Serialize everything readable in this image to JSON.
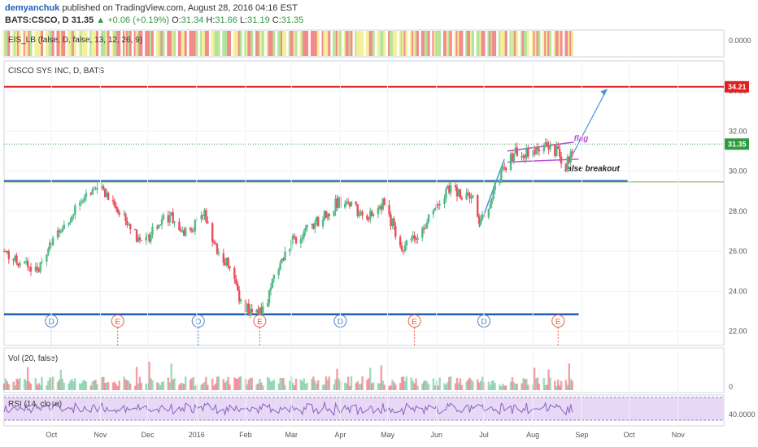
{
  "header": {
    "user": "demyanchuk",
    "published": "published on TradingView.com, August 28, 2016 04:16 EST",
    "symbol": "BATS:CSCO, D",
    "last": "31.35",
    "change": "+0.06 (+0.19%)",
    "open_label": "O:",
    "open": "31.34",
    "high_label": "H:",
    "high": "31.66",
    "low_label": "L:",
    "low": "31.19",
    "close_label": "C:",
    "close": "31.35"
  },
  "colors": {
    "up": "#53b987",
    "down": "#eb4d5c",
    "resistance": "#e02020",
    "support": "#1f5fb8",
    "channel": "#b94fd6",
    "arrow": "#4a90d9",
    "rsi_fill": "#e7d9f5"
  },
  "chart_data": {
    "type": "candlestick",
    "title": "CISCO SYS INC, D, BATS",
    "indicator_panel": "EIS_LB (false, D, false, 13, 12, 26, 9)",
    "indicator_axis_label": "0.0000",
    "volume_panel": "Vol (20, false)",
    "volume_axis_label": "0",
    "rsi_panel": "RSI (14, close)",
    "rsi_axis_label": "40.0000",
    "y_ticks": [
      "34.00",
      "32.00",
      "30.00",
      "28.00",
      "26.00",
      "24.00",
      "22.00"
    ],
    "ylim": [
      21.3,
      35.5
    ],
    "current_price": "31.35",
    "resistance_price": "34.21",
    "x_ticks": [
      "Oct",
      "Nov",
      "Dec",
      "2016",
      "Feb",
      "Mar",
      "Apr",
      "May",
      "Jun",
      "Jul",
      "Aug",
      "Sep",
      "Oct",
      "Nov"
    ],
    "x_tick_dates": [
      "2015-10-01",
      "2015-11-01",
      "2015-12-01",
      "2016-01-01",
      "2016-02-01",
      "2016-03-01",
      "2016-04-01",
      "2016-05-01",
      "2016-06-01",
      "2016-07-01",
      "2016-08-01",
      "2016-09-01",
      "2016-10-01",
      "2016-11-01"
    ],
    "xlim": [
      "2015-09-01",
      "2016-11-30"
    ],
    "price_path": [
      [
        "2015-09-01",
        26.0
      ],
      [
        "2015-09-12",
        25.4
      ],
      [
        "2015-09-22",
        25.1
      ],
      [
        "2015-09-30",
        26.2
      ],
      [
        "2015-10-08",
        27.3
      ],
      [
        "2015-10-18",
        28.2
      ],
      [
        "2015-10-28",
        29.1
      ],
      [
        "2015-11-04",
        29.0
      ],
      [
        "2015-11-14",
        28.0
      ],
      [
        "2015-11-22",
        27.0
      ],
      [
        "2015-11-28",
        26.3
      ],
      [
        "2015-12-08",
        27.5
      ],
      [
        "2015-12-18",
        27.7
      ],
      [
        "2015-12-24",
        26.9
      ],
      [
        "2015-12-31",
        27.3
      ],
      [
        "2016-01-06",
        27.8
      ],
      [
        "2016-01-10",
        26.6
      ],
      [
        "2016-01-18",
        25.7
      ],
      [
        "2016-01-24",
        24.8
      ],
      [
        "2016-01-28",
        23.5
      ],
      [
        "2016-02-04",
        23.0
      ],
      [
        "2016-02-11",
        22.9
      ],
      [
        "2016-02-14",
        23.4
      ],
      [
        "2016-02-20",
        25.0
      ],
      [
        "2016-02-28",
        26.3
      ],
      [
        "2016-03-10",
        27.0
      ],
      [
        "2016-03-20",
        27.6
      ],
      [
        "2016-03-31",
        28.5
      ],
      [
        "2016-04-08",
        28.3
      ],
      [
        "2016-04-18",
        27.6
      ],
      [
        "2016-04-28",
        28.4
      ],
      [
        "2016-05-05",
        27.2
      ],
      [
        "2016-05-10",
        26.2
      ],
      [
        "2016-05-20",
        26.7
      ],
      [
        "2016-05-31",
        28.1
      ],
      [
        "2016-06-08",
        29.1
      ],
      [
        "2016-06-18",
        28.8
      ],
      [
        "2016-06-24",
        28.6
      ],
      [
        "2016-06-28",
        27.3
      ],
      [
        "2016-07-05",
        28.5
      ],
      [
        "2016-07-10",
        29.7
      ],
      [
        "2016-07-16",
        30.4
      ],
      [
        "2016-07-22",
        31.0
      ],
      [
        "2016-07-31",
        30.9
      ],
      [
        "2016-08-08",
        31.2
      ],
      [
        "2016-08-16",
        31.0
      ],
      [
        "2016-08-22",
        30.3
      ],
      [
        "2016-08-27",
        31.3
      ]
    ],
    "support_line": {
      "price": 22.85,
      "from": "2015-09-01",
      "to": "2016-08-30"
    },
    "neckline": {
      "price": 29.5,
      "from": "2015-09-01",
      "to": "2016-09-30"
    },
    "trend_channel": {
      "from": [
        "2016-06-28",
        27.2
      ],
      "to": [
        "2016-07-14",
        30.6
      ]
    },
    "flag_top": {
      "from": [
        "2016-07-16",
        31.0
      ],
      "to": [
        "2016-08-27",
        31.45
      ]
    },
    "flag_bottom": {
      "from": [
        "2016-07-16",
        30.45
      ],
      "to": [
        "2016-08-30",
        30.6
      ]
    },
    "target_arrow": {
      "from": [
        "2016-08-22",
        30.2
      ],
      "to": [
        "2016-09-17",
        34.1
      ]
    },
    "annotations": [
      {
        "text": "flag",
        "at": [
          "2016-08-27",
          31.5
        ]
      },
      {
        "text": "false breakout",
        "at": [
          "2016-08-21",
          30.0
        ]
      }
    ],
    "events": [
      {
        "label": "D",
        "date": "2015-10-01"
      },
      {
        "label": "E",
        "date": "2015-11-12"
      },
      {
        "label": "D",
        "date": "2016-01-02"
      },
      {
        "label": "E",
        "date": "2016-02-10"
      },
      {
        "label": "D",
        "date": "2016-04-01"
      },
      {
        "label": "E",
        "date": "2016-05-18"
      },
      {
        "label": "D",
        "date": "2016-07-01"
      },
      {
        "label": "E",
        "date": "2016-08-17"
      }
    ]
  }
}
